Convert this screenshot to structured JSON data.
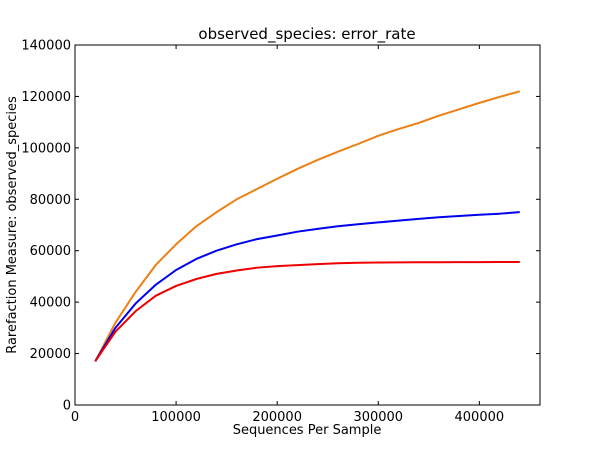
{
  "chart_data": {
    "type": "line",
    "title": "observed_species: error_rate",
    "xlabel": "Sequences Per Sample",
    "ylabel": "Rarefaction Measure: observed_species",
    "xlim": [
      0,
      460000
    ],
    "ylim": [
      0,
      140000
    ],
    "grid": false,
    "x_ticks": [
      0,
      100000,
      200000,
      300000,
      400000
    ],
    "x_tick_labels": [
      "0",
      "100000",
      "200000",
      "300000",
      "400000"
    ],
    "y_ticks": [
      0,
      20000,
      40000,
      60000,
      80000,
      100000,
      120000,
      140000
    ],
    "y_tick_labels": [
      "0",
      "20000",
      "40000",
      "60000",
      "80000",
      "100000",
      "120000",
      "140000"
    ],
    "x": [
      20000,
      40000,
      60000,
      80000,
      100000,
      120000,
      140000,
      160000,
      180000,
      200000,
      220000,
      240000,
      260000,
      280000,
      300000,
      320000,
      340000,
      360000,
      380000,
      400000,
      420000,
      440000
    ],
    "series": [
      {
        "color": "#ee7f14",
        "values": [
          17000,
          32000,
          44000,
          54500,
          62500,
          69500,
          75000,
          80000,
          84000,
          88000,
          91800,
          95300,
          98500,
          101500,
          104700,
          107300,
          109700,
          112500,
          115000,
          117500,
          119800,
          122000
        ]
      },
      {
        "color": "#0000ee",
        "values": [
          17000,
          30000,
          39500,
          46800,
          52500,
          56800,
          60000,
          62500,
          64500,
          65900,
          67400,
          68500,
          69500,
          70300,
          71000,
          71700,
          72400,
          73000,
          73500,
          74000,
          74400,
          75000
        ]
      },
      {
        "color": "#ee0000",
        "values": [
          17000,
          28500,
          36500,
          42500,
          46300,
          49000,
          51000,
          52300,
          53400,
          54000,
          54400,
          54800,
          55100,
          55300,
          55400,
          55450,
          55500,
          55500,
          55550,
          55550,
          55600,
          55600
        ]
      }
    ]
  }
}
